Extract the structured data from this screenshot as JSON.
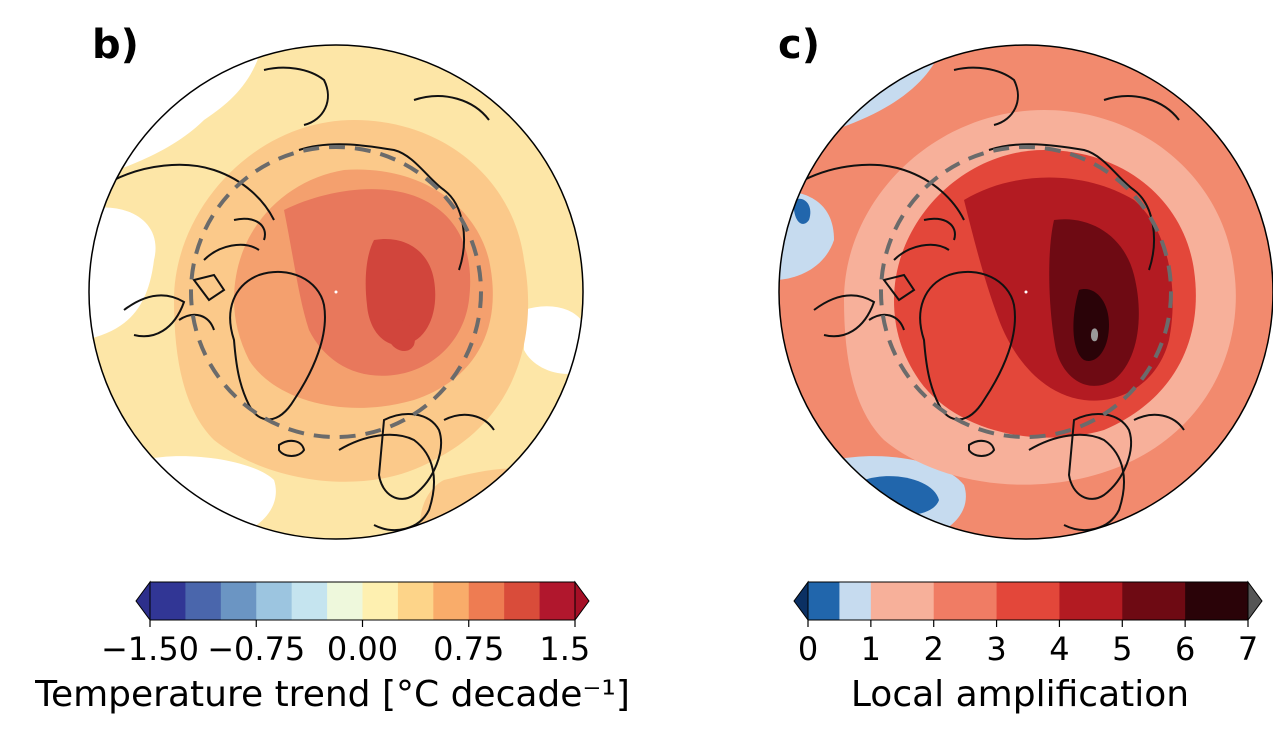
{
  "panels": [
    {
      "label": "b)",
      "colorbar": {
        "title": "Temperature trend [°C decade⁻¹]",
        "ticks": [
          "−1.50",
          "−0.75",
          "0.00",
          "0.75",
          "1.50"
        ],
        "tick_values": [
          -1.5,
          -0.75,
          0.0,
          0.75,
          1.5
        ],
        "range": [
          -1.5,
          1.5
        ],
        "extend": "both",
        "colors": [
          "#313695",
          "#4a66ac",
          "#6b95c3",
          "#9cc5e0",
          "#c5e4ef",
          "#eef8dc",
          "#fef0b0",
          "#fdd489",
          "#f9ac6a",
          "#ee7c52",
          "#d94c3a",
          "#b1172d"
        ],
        "under_color": "#2d2f8c",
        "over_color": "#a50f26"
      },
      "map": {
        "projection": "north polar stereographic",
        "background_color": "#fde6a7",
        "arctic_circle": "dashed",
        "levels": [
          {
            "value": 0.15,
            "color": "#ffffff"
          },
          {
            "value": 0.45,
            "color": "#fbc98a"
          },
          {
            "value": 0.75,
            "color": "#f4a06e"
          },
          {
            "value": 1.05,
            "color": "#e8785c"
          },
          {
            "value": 1.35,
            "color": "#d1453c"
          }
        ]
      }
    },
    {
      "label": "c)",
      "colorbar": {
        "title": "Local amplification",
        "ticks": [
          "0",
          "1",
          "2",
          "3",
          "4",
          "5",
          "6",
          "7"
        ],
        "tick_values": [
          0,
          1,
          2,
          3,
          4,
          5,
          6,
          7
        ],
        "range": [
          0,
          7
        ],
        "extend": "both",
        "boundaries": [
          0,
          0.5,
          1,
          2,
          3,
          4,
          5,
          6,
          7
        ],
        "colors": [
          "#2166ac",
          "#c6dbef",
          "#f7b09a",
          "#f07c64",
          "#e3473a",
          "#b31b22",
          "#6e0a13",
          "#2a0308"
        ],
        "under_color": "#0b3063",
        "over_color": "#555555"
      },
      "map": {
        "projection": "north polar stereographic",
        "background_color": "#f28a6e",
        "arctic_circle": "dashed",
        "levels": [
          {
            "value": 0.7,
            "color": "#c6dbef"
          },
          {
            "value": 0.2,
            "color": "#2166ac"
          },
          {
            "value": 1.5,
            "color": "#f7b09a"
          },
          {
            "value": 3.5,
            "color": "#e3473a"
          },
          {
            "value": 4.5,
            "color": "#b31b22"
          },
          {
            "value": 5.5,
            "color": "#6e0a13"
          },
          {
            "value": 6.5,
            "color": "#2a0308"
          }
        ]
      }
    }
  ]
}
